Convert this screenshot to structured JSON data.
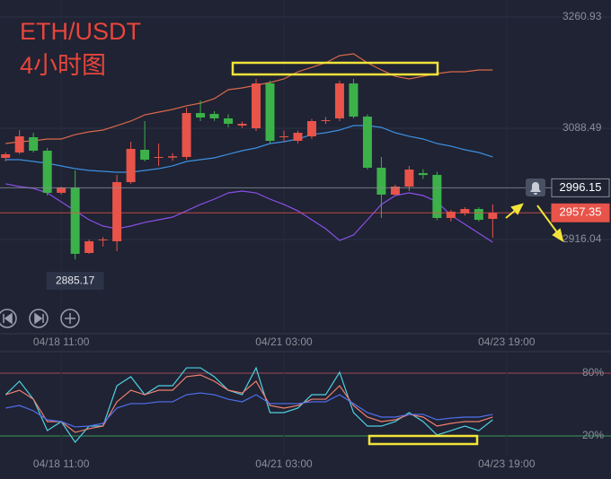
{
  "header": {
    "title": "ETH/USDT",
    "subtitle": "4小时图"
  },
  "chart_data": [
    {
      "type": "candlestick",
      "open": [
        3042.6,
        3050.9,
        3074.6,
        3053.7,
        2988.4,
        2996.7,
        2895.2,
        2914.7,
        2913.3,
        3005.0,
        3055.1,
        3042.6,
        3043.0,
        3044.0,
        3112.1,
        3110.7,
        3103.8,
        3092.7,
        3088.5,
        3158.0,
        3075.0,
        3069.0,
        3076.0,
        3099.6,
        3103.8,
        3158.0,
        3106.6,
        3027.3,
        2985.6,
        2998.1,
        3019.0,
        3016.2,
        2949.4,
        2956.4,
        2963.3,
        2948.0
      ],
      "high": [
        3051.0,
        3085.7,
        3081.5,
        3057.9,
        2998.0,
        3023.1,
        2916.0,
        2920.0,
        3016.2,
        3067.6,
        3099.6,
        3064.8,
        3050.0,
        3120.5,
        3131.6,
        3115.0,
        3110.0,
        3099.0,
        3165.0,
        3162.0,
        3085.0,
        3085.0,
        3103.0,
        3106.0,
        3162.0,
        3165.0,
        3110.0,
        3043.98,
        3001.0,
        3030.1,
        3025.0,
        3021.0,
        2962.0,
        2966.0,
        2966.0,
        2970.3
      ],
      "low": [
        3037.0,
        3048.2,
        3050.9,
        2984.2,
        2985.6,
        2885.17,
        2893.8,
        2905.0,
        2898.0,
        3002.3,
        3037.0,
        3030.1,
        3038.0,
        3039.8,
        3099.6,
        3100.0,
        3090.0,
        3089.0,
        3084.3,
        3064.8,
        3068.0,
        3065.0,
        3072.0,
        3095.0,
        3099.6,
        3103.8,
        3024.5,
        2949.4,
        2984.0,
        2991.1,
        3010.0,
        2946.0,
        2944.0,
        2953.0,
        2944.0,
        2918.8
      ],
      "close": [
        3048.2,
        3076.0,
        3053.7,
        2988.4,
        2996.7,
        2893.8,
        2913.3,
        2916.0,
        3005.0,
        3056.5,
        3039.8,
        3044.0,
        3045.0,
        3112.1,
        3105.2,
        3103.8,
        3095.4,
        3095.4,
        3158.0,
        3069.0,
        3076.0,
        3081.5,
        3099.6,
        3101.0,
        3158.0,
        3106.6,
        3027.3,
        2985.6,
        2998.1,
        3024.5,
        3016.0,
        2949.4,
        2959.2,
        2963.3,
        2946.6,
        2957.35
      ],
      "up_color": "#e8534a",
      "down_color": "#3cb14a",
      "overlays": [
        {
          "color": "#d9684a",
          "values": [
            3064.8,
            3067.6,
            3069.0,
            3071.8,
            3071.8,
            3078.7,
            3082.9,
            3085.7,
            3092.6,
            3099.6,
            3109.3,
            3113.5,
            3117.7,
            3123.3,
            3127.4,
            3134.4,
            3148.3,
            3151.1,
            3155.2,
            3159.4,
            3165.0,
            3176.1,
            3183.0,
            3190.0,
            3201.1,
            3203.9,
            3190.0,
            3178.9,
            3169.1,
            3165.0,
            3169.1,
            3173.3,
            3176.1,
            3176.1,
            3178.9,
            3178.9
          ]
        },
        {
          "color": "#3d8fe0",
          "values": [
            3039.8,
            3039.8,
            3037.0,
            3034.2,
            3030.1,
            3025.9,
            3023.1,
            3021.7,
            3020.3,
            3020.3,
            3023.1,
            3025.9,
            3030.1,
            3037.0,
            3039.8,
            3042.6,
            3048.2,
            3053.7,
            3057.9,
            3064.8,
            3067.6,
            3071.8,
            3078.7,
            3081.5,
            3085.7,
            3092.6,
            3092.6,
            3089.9,
            3081.5,
            3076.0,
            3071.8,
            3064.8,
            3060.7,
            3055.1,
            3050.9,
            3044.0
          ]
        },
        {
          "color": "#8a4fe8",
          "values": [
            3002.3,
            2998.1,
            2995.3,
            2988.3,
            2974.4,
            2960.5,
            2946.6,
            2936.9,
            2932.7,
            2936.9,
            2942.5,
            2946.6,
            2950.8,
            2960.5,
            2970.3,
            2978.6,
            2988.3,
            2991.1,
            2988.3,
            2978.6,
            2970.3,
            2960.5,
            2946.6,
            2932.7,
            2914.6,
            2923.0,
            2946.6,
            2970.3,
            2984.2,
            2988.3,
            2984.2,
            2974.4,
            2953.6,
            2939.7,
            2925.8,
            2911.9
          ]
        }
      ],
      "xlim": [
        -0.4,
        43.5
      ],
      "ylim": [
        2770,
        3287.35
      ],
      "yticks": [
        3260.93,
        3088.49,
        2916.04
      ],
      "xticks": [
        {
          "value": 4,
          "label": "04/18 11:00"
        },
        {
          "value": 20,
          "label": "04/21 03:00"
        },
        {
          "value": 36,
          "label": "04/23 19:00"
        }
      ],
      "price_lines": [
        {
          "value": 2996.15,
          "color": "#8a8f9a"
        },
        {
          "value": 2957.35,
          "color": "#e8534a"
        }
      ],
      "low_annotation": 2885.17,
      "grid": true
    },
    {
      "type": "line",
      "series": [
        {
          "color": "#4fd0e0",
          "values": [
            59.4,
            72.3,
            55.1,
            25.1,
            33.7,
            14.0,
            29.4,
            29.4,
            68.0,
            76.6,
            59.4,
            68.0,
            68.0,
            85.1,
            85.1,
            76.6,
            63.7,
            59.4,
            85.1,
            42.3,
            42.3,
            46.6,
            59.4,
            59.4,
            80.8,
            42.3,
            29.4,
            29.4,
            33.7,
            42.3,
            33.7,
            20.9,
            25.1,
            29.4,
            25.1,
            35.4
          ]
        },
        {
          "color": "#f08070",
          "values": [
            59.4,
            63.7,
            55.1,
            33.7,
            33.7,
            23.4,
            26.9,
            29.4,
            52.6,
            63.7,
            59.4,
            63.7,
            63.7,
            76.6,
            78.3,
            72.3,
            63.7,
            61.1,
            72.3,
            49.1,
            46.6,
            49.1,
            55.1,
            55.1,
            68.0,
            49.1,
            38.0,
            33.7,
            35.4,
            40.6,
            38.0,
            29.4,
            32.0,
            33.7,
            33.7,
            38.0
          ]
        },
        {
          "color": "#5070f0",
          "values": [
            46.6,
            49.1,
            44.0,
            35.4,
            33.7,
            28.6,
            29.4,
            32.0,
            46.6,
            50.9,
            50.9,
            52.6,
            52.6,
            59.4,
            61.1,
            59.4,
            55.1,
            52.6,
            59.4,
            50.9,
            50.9,
            50.9,
            52.6,
            52.6,
            59.4,
            50.9,
            42.3,
            38.0,
            38.0,
            40.6,
            40.6,
            35.4,
            37.1,
            38.0,
            38.0,
            40.6
          ]
        }
      ],
      "xlim": [
        -0.4,
        43.5
      ],
      "ylim": [
        3.7,
        98
      ],
      "yticks": [
        {
          "value": 80,
          "label": "80%",
          "color": "#a04458"
        },
        {
          "value": 20,
          "label": "20%",
          "color": "#3a9a5a"
        }
      ],
      "xticks": [
        {
          "value": 4,
          "label": "04/18 11:00"
        },
        {
          "value": 20,
          "label": "04/21 03:00"
        },
        {
          "value": 36,
          "label": "04/23 19:00"
        }
      ]
    }
  ]
}
